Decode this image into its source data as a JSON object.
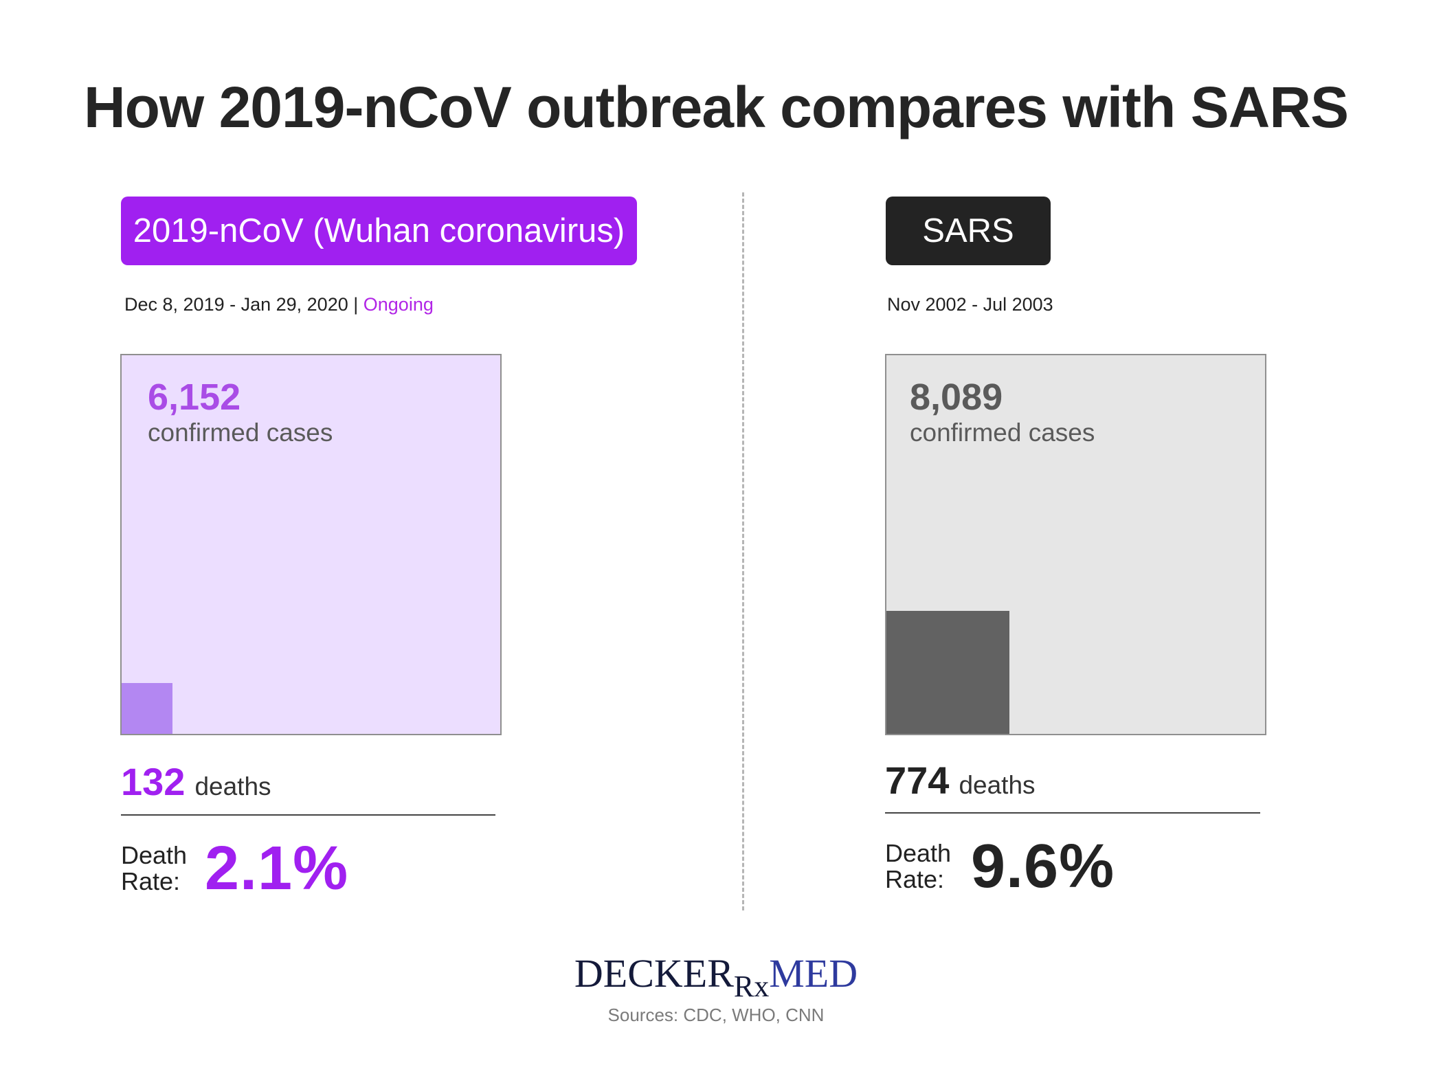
{
  "title": "How 2019-nCoV outbreak compares with SARS",
  "colors": {
    "ncov_accent": "#a020f0",
    "ncov_box_bg": "#ecdeff",
    "ncov_deaths_square": "#b387f2",
    "sars_accent": "#232323",
    "sars_box_bg": "#e6e6e6",
    "sars_deaths_square": "#626262"
  },
  "panels": {
    "ncov": {
      "label": "2019-nCoV (Wuhan coronavirus)",
      "dates": "Dec 8, 2019 - Jan 29, 2020 |",
      "status": "Ongoing",
      "cases_value": "6,152",
      "cases_label": "confirmed cases",
      "deaths_value": "132",
      "deaths_label": "deaths",
      "rate_label_1": "Death",
      "rate_label_2": "Rate:",
      "rate_value": "2.1%"
    },
    "sars": {
      "label": "SARS",
      "dates": "Nov 2002 - Jul 2003",
      "cases_value": "8,089",
      "cases_label": "confirmed cases",
      "deaths_value": "774",
      "deaths_label": "deaths",
      "rate_label_1": "Death",
      "rate_label_2": "Rate:",
      "rate_value": "9.6%"
    }
  },
  "chart_data": {
    "type": "area",
    "encoding": "square area proportional to count",
    "series": [
      {
        "name": "2019-nCoV (Wuhan coronavirus)",
        "cases": 6152,
        "deaths": 132,
        "death_rate": 2.1
      },
      {
        "name": "SARS",
        "cases": 8089,
        "deaths": 774,
        "death_rate": 9.6
      }
    ]
  },
  "logo": {
    "part1": "DECKER",
    "part2": "Rx",
    "part3": "MED"
  },
  "sources": "Sources: CDC, WHO, CNN"
}
